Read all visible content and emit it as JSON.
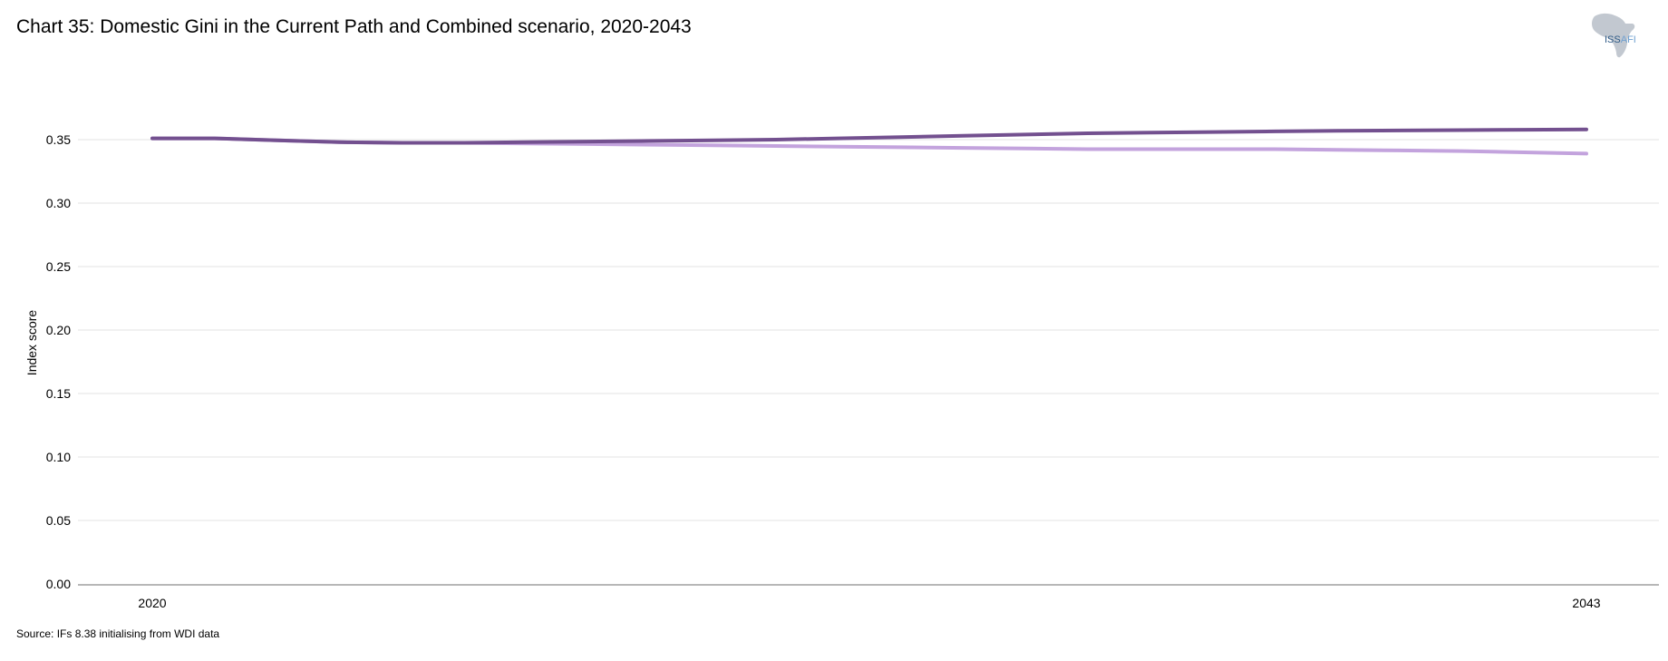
{
  "title": "Chart 35: Domestic Gini in the Current Path and Combined scenario, 2020-2043",
  "source": "Source: IFs 8.38 initialising from WDI data",
  "logo": {
    "text_left": "ISS",
    "text_right": "AFI"
  },
  "chart_data": {
    "type": "line",
    "xlabel": "",
    "ylabel": "Index score",
    "xlim": [
      2020,
      2043
    ],
    "ylim": [
      0,
      0.35
    ],
    "x_ticks": [
      "2020",
      "2043"
    ],
    "y_ticks": [
      "0.00",
      "0.05",
      "0.10",
      "0.15",
      "0.20",
      "0.25",
      "0.30",
      "0.35"
    ],
    "y_tick_values": [
      0,
      0.05,
      0.1,
      0.15,
      0.2,
      0.25,
      0.3,
      0.35
    ],
    "grid": true,
    "x": [
      2020,
      2021,
      2022,
      2023,
      2024,
      2025,
      2026,
      2027,
      2028,
      2029,
      2030,
      2031,
      2032,
      2033,
      2034,
      2035,
      2036,
      2037,
      2038,
      2039,
      2040,
      2041,
      2042,
      2043
    ],
    "series": [
      {
        "color": "#73508f",
        "values": [
          0.351,
          0.351,
          0.3495,
          0.348,
          0.3475,
          0.3475,
          0.348,
          0.3485,
          0.349,
          0.3495,
          0.35,
          0.351,
          0.352,
          0.353,
          0.354,
          0.355,
          0.3555,
          0.356,
          0.3565,
          0.357,
          0.3572,
          0.3575,
          0.3578,
          0.358
        ]
      },
      {
        "color": "#c3a3dd",
        "values": [
          0.351,
          0.351,
          0.3495,
          0.348,
          0.3475,
          0.3475,
          0.347,
          0.3465,
          0.346,
          0.3455,
          0.345,
          0.3445,
          0.344,
          0.3435,
          0.343,
          0.3425,
          0.3425,
          0.3425,
          0.3425,
          0.342,
          0.3415,
          0.341,
          0.34,
          0.339
        ]
      }
    ]
  }
}
